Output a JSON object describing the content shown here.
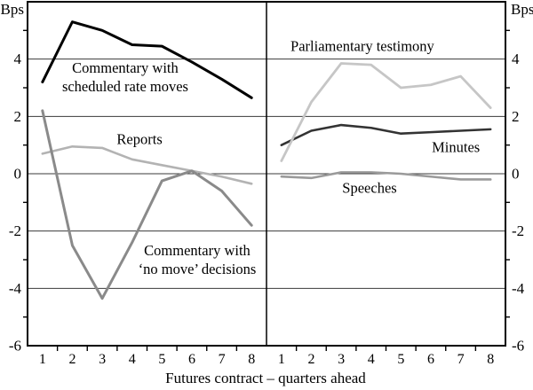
{
  "chart_data": {
    "type": "line",
    "title": "",
    "y_unit": "Bps",
    "xlabel": "Futures contract – quarters ahead",
    "ylim": [
      -6,
      6
    ],
    "yticks": [
      4,
      2,
      0,
      -2,
      -4,
      -6
    ],
    "minor_yticks": [
      5,
      3,
      1,
      -1,
      -3,
      -5
    ],
    "grid": true,
    "x_categories": [
      "1",
      "2",
      "3",
      "4",
      "5",
      "6",
      "7",
      "8"
    ],
    "panels": [
      {
        "name": "left",
        "series": [
          {
            "name": "Reports",
            "color": "#b3b3b3",
            "stroke_width": 2.6,
            "values": [
              0.7,
              0.95,
              0.9,
              0.5,
              0.3,
              0.1,
              -0.1,
              -0.35
            ]
          },
          {
            "name": "Commentary with 'no move' decisions",
            "color": "#8a8a8a",
            "stroke_width": 3,
            "values": [
              2.2,
              -2.5,
              -4.35,
              -2.4,
              -0.25,
              0.1,
              -0.6,
              -1.8
            ]
          },
          {
            "name": "Commentary with scheduled rate moves",
            "color": "#000000",
            "stroke_width": 3,
            "values": [
              3.2,
              5.3,
              5.0,
              4.5,
              4.45,
              3.9,
              3.3,
              2.65
            ]
          }
        ],
        "labels": [
          {
            "lines": [
              "Commentary with",
              "scheduled rate moves"
            ],
            "x": 3.77,
            "y": 3.37
          },
          {
            "lines": [
              "Reports"
            ],
            "x": 4.25,
            "y": 1.2
          },
          {
            "lines": [
              "Commentary with",
              "‘no move’ decisions"
            ],
            "x": 6.18,
            "y": -3.0
          }
        ]
      },
      {
        "name": "right",
        "series": [
          {
            "name": "Speeches",
            "color": "#9a9a9a",
            "stroke_width": 2.6,
            "values": [
              -0.1,
              -0.15,
              0.05,
              0.05,
              0.0,
              -0.1,
              -0.2,
              -0.2
            ]
          },
          {
            "name": "Minutes",
            "color": "#333333",
            "stroke_width": 2.6,
            "values": [
              1.0,
              1.5,
              1.7,
              1.6,
              1.4,
              1.45,
              1.5,
              1.55
            ]
          },
          {
            "name": "Parliamentary testimony",
            "color": "#c6c6c6",
            "stroke_width": 2.8,
            "values": [
              0.45,
              2.5,
              3.85,
              3.8,
              3.0,
              3.1,
              3.4,
              2.3
            ]
          }
        ],
        "labels": [
          {
            "lines": [
              "Parliamentary testimony"
            ],
            "x": 3.71,
            "y": 4.45
          },
          {
            "lines": [
              "Minutes"
            ],
            "x": 6.84,
            "y": 0.93
          },
          {
            "lines": [
              "Speeches"
            ],
            "x": 3.95,
            "y": -0.49
          }
        ]
      }
    ],
    "colors": {
      "border": "#000000",
      "gridline": "#3a3a3a",
      "text": "#000000"
    }
  }
}
